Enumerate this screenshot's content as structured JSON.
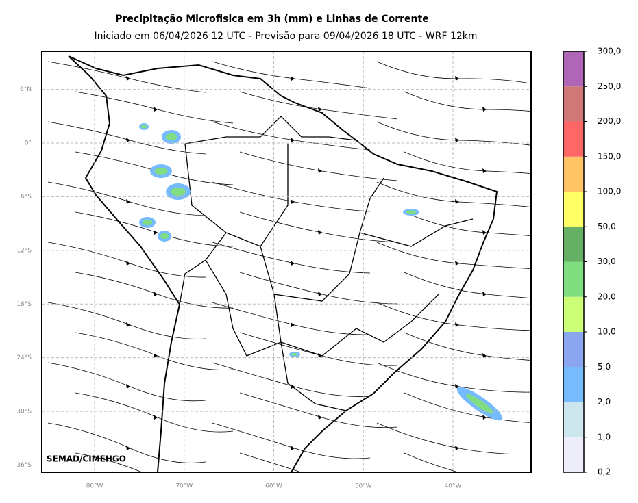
{
  "title": "Precipitação Microfisica em 3h (mm) e Linhas de Corrente",
  "subtitle": "Iniciado em 06/04/2026 12 UTC - Previsão para 09/04/2026 18 UTC - WRF 12km",
  "watermark": "SEMAD/CIMEHGO",
  "lat_ticks": [
    {
      "value": 6,
      "label": "6°N"
    },
    {
      "value": 0,
      "label": "0°"
    },
    {
      "value": -6,
      "label": "6°S"
    },
    {
      "value": -12,
      "label": "12°S"
    },
    {
      "value": -18,
      "label": "18°S"
    },
    {
      "value": -24,
      "label": "24°S"
    },
    {
      "value": -30,
      "label": "30°S"
    },
    {
      "value": -36,
      "label": "36°S"
    }
  ],
  "lon_ticks": [
    {
      "value": -80,
      "label": "80°W"
    },
    {
      "value": -70,
      "label": "70°W"
    },
    {
      "value": -60,
      "label": "60°W"
    },
    {
      "value": -50,
      "label": "50°W"
    },
    {
      "value": -40,
      "label": "40°W"
    }
  ],
  "colorbar": {
    "labels": [
      "0,2",
      "1,0",
      "2,0",
      "5,0",
      "10,0",
      "20,0",
      "30,0",
      "50,0",
      "100,0",
      "150,0",
      "200,0",
      "250,0",
      "300,0"
    ],
    "colors": [
      "#eeeefa",
      "#cce6ee",
      "#77bbff",
      "#8aa6ee",
      "#ccff77",
      "#80dd80",
      "#66b066",
      "#ffff66",
      "#ffc466",
      "#ff6666",
      "#d07878",
      "#b066b6"
    ]
  }
}
